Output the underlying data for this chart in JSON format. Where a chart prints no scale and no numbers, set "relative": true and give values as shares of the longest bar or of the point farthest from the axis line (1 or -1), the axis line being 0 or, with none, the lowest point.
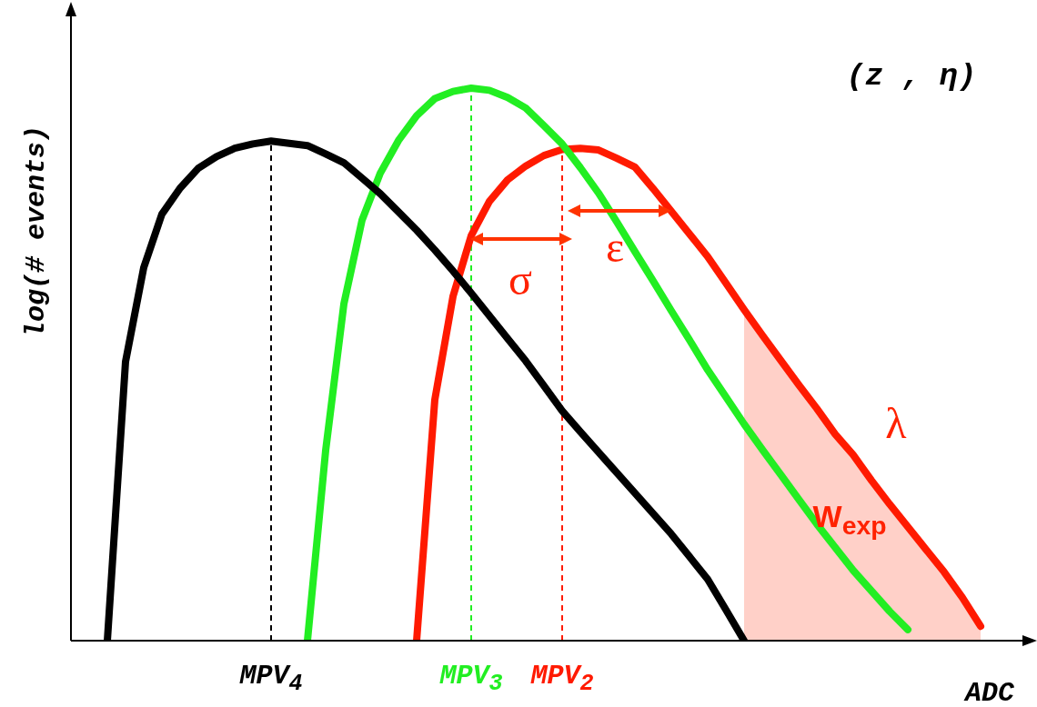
{
  "chart_data": {
    "type": "line",
    "relative": true,
    "ylabel": "log(# events)",
    "xlabel": "ADC",
    "tick_labels": false,
    "grid": false,
    "legend": false,
    "marker": "none",
    "line_style": "solid",
    "categories": [
      null,
      null,
      null,
      null,
      null,
      null,
      null,
      null,
      null,
      null,
      null,
      "MPV$_{4}$",
      null,
      null,
      null,
      null,
      null,
      null,
      null,
      null,
      null,
      null,
      "MPV$_{3}$",
      null,
      null,
      null,
      null,
      "MPV$_{2}$",
      null,
      null,
      null,
      null,
      null,
      null,
      null,
      null,
      null,
      null,
      null,
      null,
      null,
      null,
      null,
      null,
      null,
      null,
      null,
      null,
      null,
      null,
      null,
      null,
      null
    ],
    "annotations": [
      "(z , η)",
      "σ",
      "ε",
      "λ",
      "W$_{exp}$"
    ],
    "series": [
      {
        "type": "area",
        "color": "#ffd0c8",
        "values": [
          null,
          null,
          null,
          null,
          null,
          null,
          null,
          null,
          null,
          null,
          null,
          null,
          null,
          null,
          null,
          null,
          null,
          null,
          null,
          null,
          null,
          null,
          null,
          null,
          null,
          null,
          null,
          null,
          null,
          null,
          null,
          null,
          null,
          null,
          null,
          null,
          null,
          0.599,
          0.553,
          0.508,
          0.463,
          0.42,
          0.374,
          0.336,
          0.29,
          0.247,
          0.206,
          0.165,
          0.124,
          0.078,
          0.026,
          null,
          null
        ]
      },
      {
        "color": "#000000",
        "values": [
          null,
          null,
          0,
          0.505,
          0.675,
          0.772,
          0.819,
          0.855,
          0.876,
          0.891,
          0.899,
          0.904,
          0.9,
          0.896,
          0.881,
          0.865,
          0.837,
          0.809,
          0.776,
          0.743,
          0.707,
          0.669,
          0.629,
          0.588,
          0.547,
          0.506,
          0.461,
          0.416,
          0.378,
          0.341,
          0.304,
          0.267,
          0.23,
          0.193,
          0.152,
          0.111,
          0.056,
          0,
          null,
          null,
          null,
          null,
          null,
          null,
          null,
          null,
          null,
          null,
          null,
          null,
          null,
          null,
          null
        ]
      },
      {
        "color": "#22ee22",
        "values": [
          null,
          null,
          null,
          null,
          null,
          null,
          null,
          null,
          null,
          null,
          null,
          null,
          null,
          0,
          0.344,
          0.609,
          0.761,
          0.846,
          0.905,
          0.95,
          0.981,
          0.994,
          1,
          0.996,
          0.983,
          0.964,
          0.932,
          0.899,
          0.856,
          0.81,
          0.758,
          0.704,
          0.651,
          0.597,
          0.544,
          0.49,
          0.441,
          0.392,
          0.346,
          0.301,
          0.256,
          0.211,
          0.169,
          0.127,
          0.09,
          0.053,
          0.02,
          null,
          null,
          null,
          null,
          null,
          null
        ]
      },
      {
        "color": "#ff1a00",
        "values": [
          null,
          null,
          null,
          null,
          null,
          null,
          null,
          null,
          null,
          null,
          null,
          null,
          null,
          null,
          null,
          null,
          null,
          null,
          null,
          0,
          0.436,
          0.623,
          0.733,
          0.795,
          0.834,
          0.859,
          0.878,
          0.889,
          0.891,
          0.888,
          0.873,
          0.857,
          0.818,
          0.777,
          0.736,
          0.695,
          0.647,
          0.599,
          0.553,
          0.508,
          0.463,
          0.42,
          0.374,
          0.336,
          0.29,
          0.247,
          0.206,
          0.165,
          0.124,
          0.078,
          0.026,
          null,
          null
        ]
      }
    ],
    "ref_lines": [
      {
        "axis": "x",
        "value": "MPV$_{4}$",
        "color": "#000000",
        "line_style": "dashed"
      },
      {
        "axis": "x",
        "value": "MPV$_{3}$",
        "color": "#22ee22",
        "line_style": "dashed"
      },
      {
        "axis": "x",
        "value": "MPV$_{2}$",
        "color": "#ff1a00",
        "line_style": "dashed"
      }
    ]
  }
}
